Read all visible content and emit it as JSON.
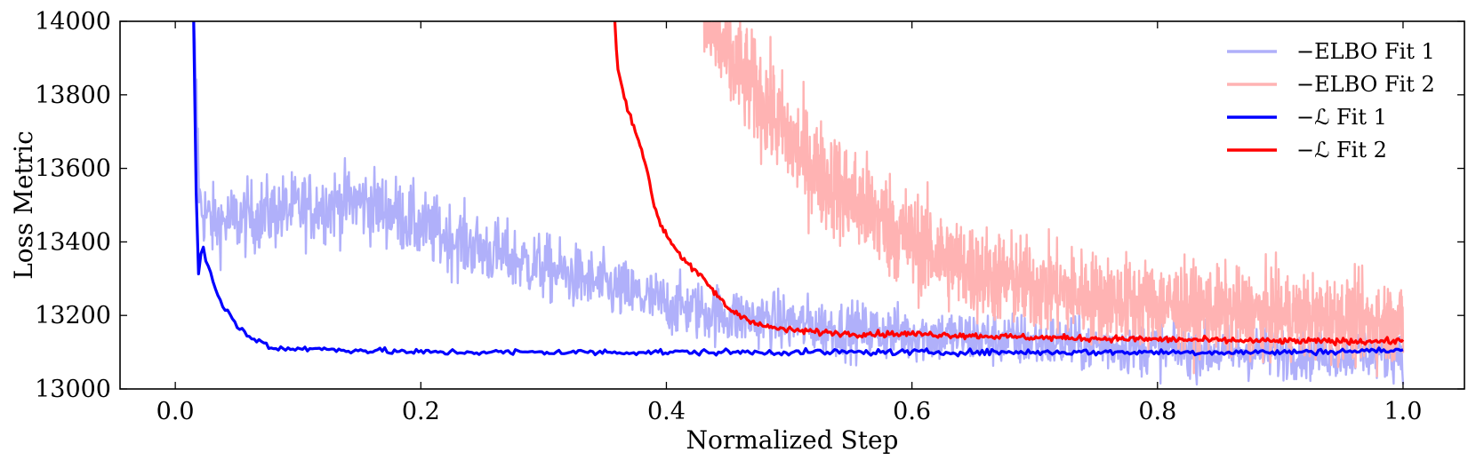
{
  "chart_data": {
    "type": "line",
    "title": "",
    "xlabel": "Normalized Step",
    "ylabel": "Loss Metric",
    "xlim": [
      -0.045,
      1.05
    ],
    "ylim": [
      13000,
      14000
    ],
    "xticks": [
      0.0,
      0.2,
      0.4,
      0.6,
      0.8,
      1.0
    ],
    "xtick_labels": [
      "0.0",
      "0.2",
      "0.4",
      "0.6",
      "0.8",
      "1.0"
    ],
    "yticks": [
      13000,
      13200,
      13400,
      13600,
      13800,
      14000
    ],
    "ytick_labels": [
      "13000",
      "13200",
      "13400",
      "13600",
      "13800",
      "14000"
    ],
    "grid": false,
    "legend_position": "top-right",
    "series": [
      {
        "name": "−ELBO Fit 1",
        "color": "#b0b0fa",
        "noise": 90,
        "x": [
          0.015,
          0.02,
          0.03,
          0.05,
          0.08,
          0.1,
          0.12,
          0.15,
          0.18,
          0.2,
          0.25,
          0.3,
          0.35,
          0.4,
          0.45,
          0.5,
          0.55,
          0.6,
          0.65,
          0.7,
          0.75,
          0.8,
          0.85,
          0.9,
          0.95,
          1.0
        ],
        "y": [
          14000,
          13500,
          13450,
          13460,
          13480,
          13490,
          13500,
          13510,
          13480,
          13440,
          13380,
          13330,
          13280,
          13230,
          13200,
          13180,
          13160,
          13150,
          13140,
          13130,
          13120,
          13110,
          13100,
          13100,
          13100,
          13100
        ]
      },
      {
        "name": "−ELBO Fit 2",
        "color": "#ffb3b3",
        "noise": 130,
        "x": [
          0.43,
          0.45,
          0.48,
          0.5,
          0.52,
          0.55,
          0.58,
          0.6,
          0.63,
          0.65,
          0.7,
          0.75,
          0.8,
          0.85,
          0.9,
          0.95,
          1.0
        ],
        "y": [
          14000,
          13900,
          13780,
          13680,
          13600,
          13520,
          13450,
          13400,
          13350,
          13320,
          13280,
          13250,
          13230,
          13210,
          13200,
          13190,
          13180
        ]
      },
      {
        "name": "−ℒ Fit 1",
        "color": "#0000ff",
        "x": [
          0.015,
          0.018,
          0.022,
          0.025,
          0.03,
          0.035,
          0.04,
          0.045,
          0.05,
          0.055,
          0.06,
          0.07,
          0.08,
          0.1,
          0.15,
          0.2,
          0.25,
          0.3,
          0.4,
          0.5,
          0.6,
          0.7,
          0.8,
          0.9,
          1.0
        ],
        "y": [
          14000,
          13290,
          13400,
          13350,
          13300,
          13250,
          13220,
          13200,
          13170,
          13160,
          13140,
          13130,
          13110,
          13110,
          13105,
          13100,
          13100,
          13100,
          13100,
          13100,
          13100,
          13100,
          13100,
          13100,
          13105
        ]
      },
      {
        "name": "−ℒ Fit 2",
        "color": "#ff0000",
        "x": [
          0.358,
          0.36,
          0.365,
          0.37,
          0.375,
          0.38,
          0.385,
          0.39,
          0.395,
          0.4,
          0.41,
          0.42,
          0.43,
          0.44,
          0.45,
          0.46,
          0.48,
          0.5,
          0.55,
          0.6,
          0.7,
          0.8,
          0.9,
          1.0
        ],
        "y": [
          14000,
          13880,
          13800,
          13750,
          13700,
          13650,
          13580,
          13500,
          13450,
          13420,
          13370,
          13330,
          13300,
          13260,
          13220,
          13200,
          13170,
          13160,
          13150,
          13150,
          13140,
          13135,
          13130,
          13130
        ]
      }
    ]
  }
}
